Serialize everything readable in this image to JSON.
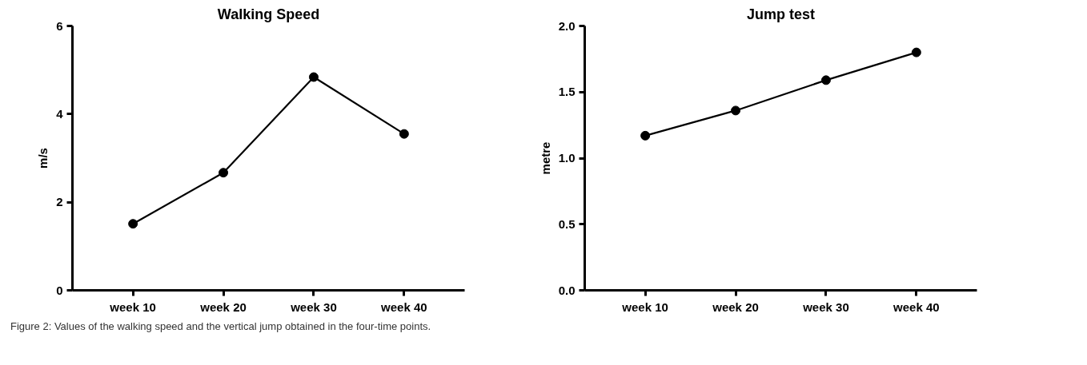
{
  "chart_data": [
    {
      "type": "line",
      "title": "Walking Speed",
      "ylabel": "m/s",
      "categories": [
        "week 10",
        "week 20",
        "week 30",
        "week 40"
      ],
      "series": [
        {
          "color": "#000000",
          "values": [
            1.51,
            2.67,
            4.84,
            3.55
          ]
        }
      ],
      "ylim": [
        0,
        6
      ],
      "yticks": [
        0,
        2,
        4,
        6
      ],
      "grid": false,
      "marker": "circle",
      "line_style": "solid",
      "annotations": [
        "Figure 2: Values of the walking speed and the vertical jump obtained in the four-time points."
      ]
    },
    {
      "type": "line",
      "title": "Jump test",
      "ylabel": "metre",
      "categories": [
        "week 10",
        "week 20",
        "week 30",
        "week 40"
      ],
      "series": [
        {
          "color": "#000000",
          "values": [
            1.17,
            1.36,
            1.59,
            1.8
          ]
        }
      ],
      "ylim": [
        0,
        2.0
      ],
      "yticks": [
        {
          "value": 0,
          "label": "0.0"
        },
        {
          "value": 0.5,
          "label": "0.5"
        },
        {
          "value": 1.0,
          "label": "1.0"
        },
        {
          "value": 1.5,
          "label": "1.5"
        },
        {
          "value": 2.0,
          "label": "2.0"
        }
      ],
      "grid": false,
      "marker": "circle",
      "line_style": "solid"
    }
  ]
}
